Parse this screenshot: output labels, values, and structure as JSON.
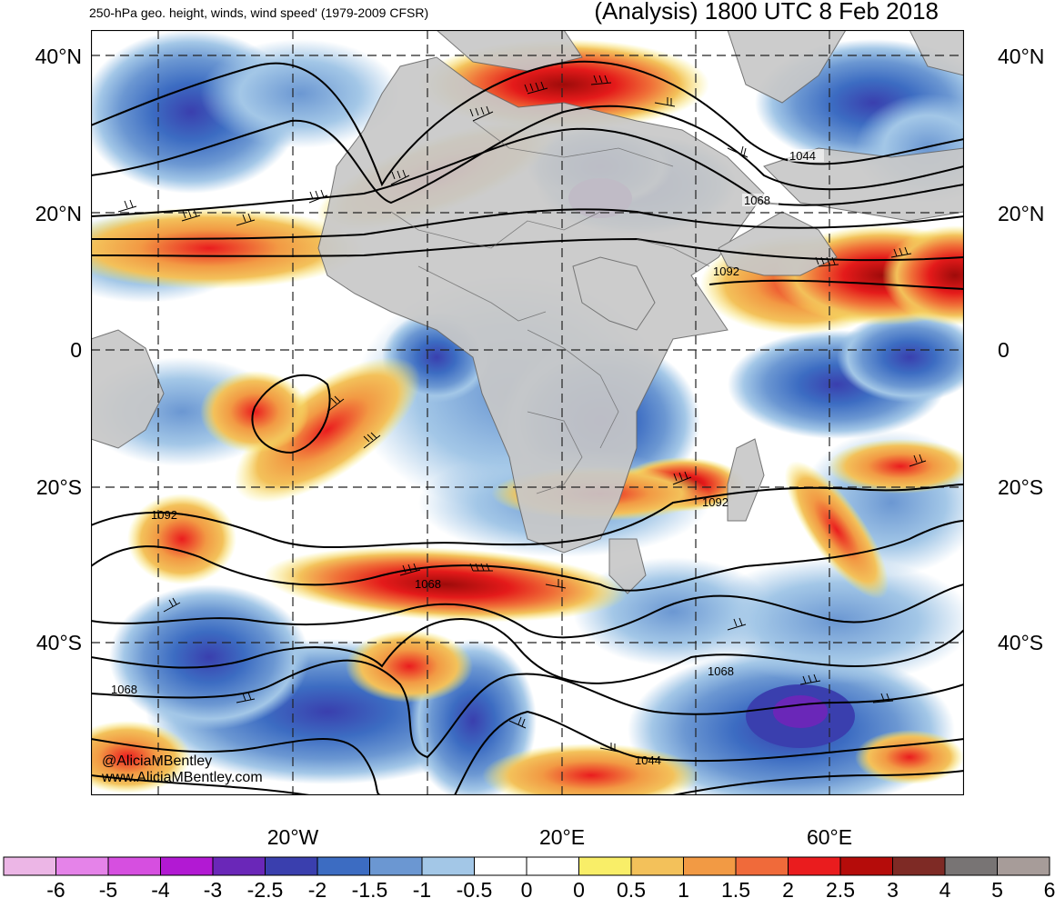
{
  "header": {
    "left_title": "250-hPa geo. height, winds, wind speed' (1979-2009 CFSR)",
    "right_title": "(Analysis) 1800 UTC 8 Feb 2018"
  },
  "axes": {
    "lat_labels": [
      {
        "text": "40°N",
        "lat": 40
      },
      {
        "text": "20°N",
        "lat": 20
      },
      {
        "text": "0",
        "lat": 0
      },
      {
        "text": "20°S",
        "lat": -20
      },
      {
        "text": "40°S",
        "lat": -40
      }
    ],
    "lon_labels": [
      {
        "text": "20°W",
        "lon": -20
      },
      {
        "text": "20°E",
        "lon": 20
      },
      {
        "text": "60°E",
        "lon": 60
      }
    ],
    "lat_range": [
      -56,
      43
    ],
    "lon_range": [
      -50,
      80
    ]
  },
  "contours": [
    {
      "label": "1044"
    },
    {
      "label": "1068"
    },
    {
      "label": "1092"
    }
  ],
  "colorbar": {
    "labels": [
      "-6",
      "-5",
      "-4",
      "-3",
      "-2.5",
      "-2",
      "-1.5",
      "-1",
      "-0.5",
      "0",
      "0",
      "0.5",
      "1",
      "1.5",
      "2",
      "2.5",
      "3",
      "4",
      "5",
      "6"
    ],
    "colors": [
      "#ecb6e6",
      "#e583e9",
      "#d64fe0",
      "#b219d3",
      "#6a27b8",
      "#3a3fae",
      "#3c6cc2",
      "#6b97d2",
      "#a3c7e7",
      "#ffffff",
      "#ffffff",
      "#f9ee68",
      "#f3c15a",
      "#f29a44",
      "#f06a3a",
      "#ea1c1e",
      "#b50c0a",
      "#7e2a25",
      "#787474",
      "#a79c99"
    ]
  },
  "credits": {
    "handle": "@AliciaMBentley",
    "website": "www.AliciaMBentley.com"
  }
}
